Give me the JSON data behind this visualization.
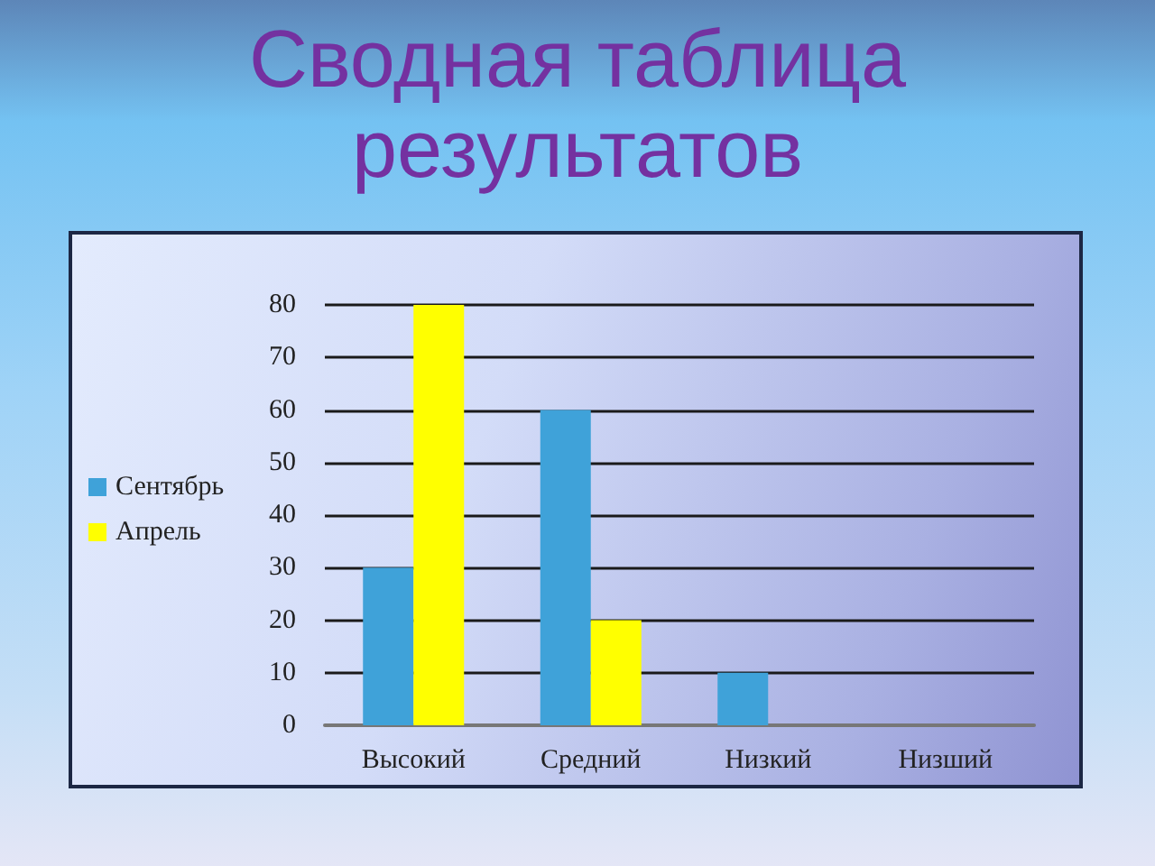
{
  "chart_data": {
    "type": "bar",
    "title": "Сводная таблица результатов",
    "categories": [
      "Высокий",
      "Средний",
      "Низкий",
      "Низший"
    ],
    "series": [
      {
        "name": "Сентябрь",
        "color": "#3fa2d9",
        "values": [
          30,
          60,
          10,
          0
        ]
      },
      {
        "name": "Апрель",
        "color": "#ffff00",
        "values": [
          80,
          20,
          0,
          0
        ]
      }
    ],
    "ylim": [
      0,
      80
    ],
    "yticks": [
      0,
      10,
      20,
      30,
      40,
      50,
      60,
      70,
      80
    ],
    "grid": "y",
    "legend": "left"
  }
}
